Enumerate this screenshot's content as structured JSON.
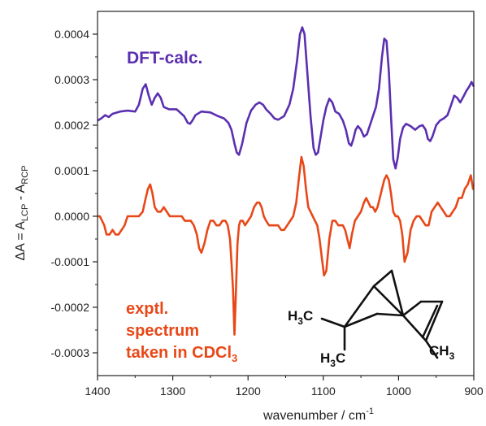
{
  "chart_data": {
    "type": "line",
    "xlabel": "wavenumber / cm",
    "xlabel_sup": "-1",
    "ylabel": "ΔA = A",
    "ylabel_sub1": "LCP",
    "ylabel_mid": " - A",
    "ylabel_sub2": "RCP",
    "xlim": [
      1400,
      900
    ],
    "x_reversed": true,
    "ylim": [
      -0.00035,
      0.00045
    ],
    "xticks": [
      1400,
      1300,
      1200,
      1100,
      1000,
      900
    ],
    "xtick_labels": [
      "1400",
      "1300",
      "1200",
      "1100",
      "1000",
      "900"
    ],
    "yticks": [
      -0.0003,
      -0.0002,
      -0.0001,
      0.0,
      0.0001,
      0.0002,
      0.0003,
      0.0004
    ],
    "ytick_labels": [
      "-0.0003",
      "-0.0002",
      "-0.0001",
      "0.0000",
      "0.0001",
      "0.0002",
      "0.0003",
      "0.0004"
    ],
    "grid": false,
    "series": [
      {
        "name": "DFT-calc.",
        "color": "#5b2fb0",
        "x": [
          1400,
          1395,
          1390,
          1385,
          1380,
          1370,
          1360,
          1350,
          1345,
          1340,
          1336,
          1332,
          1328,
          1324,
          1320,
          1316,
          1312,
          1305,
          1295,
          1285,
          1280,
          1277,
          1274,
          1270,
          1262,
          1250,
          1240,
          1232,
          1226,
          1222,
          1218,
          1215,
          1212,
          1208,
          1202,
          1196,
          1190,
          1185,
          1180,
          1176,
          1170,
          1165,
          1160,
          1152,
          1145,
          1140,
          1135,
          1131,
          1128,
          1125,
          1121,
          1117,
          1113,
          1110,
          1107,
          1104,
          1100,
          1096,
          1092,
          1088,
          1084,
          1079,
          1074,
          1070,
          1066,
          1063,
          1060,
          1057,
          1054,
          1050,
          1046,
          1042,
          1038,
          1034,
          1030,
          1026,
          1022,
          1019,
          1016,
          1013,
          1010,
          1007,
          1004,
          1001,
          998,
          994,
          990,
          984,
          978,
          972,
          968,
          964,
          961,
          958,
          955,
          950,
          945,
          940,
          935,
          930,
          926,
          922,
          918,
          914,
          910,
          906,
          903,
          900
        ],
        "y": [
          0.00021,
          0.000215,
          0.000222,
          0.000218,
          0.000225,
          0.00023,
          0.000232,
          0.00023,
          0.000245,
          0.00028,
          0.00029,
          0.000265,
          0.000245,
          0.00026,
          0.00027,
          0.00026,
          0.00024,
          0.000235,
          0.000235,
          0.00022,
          0.000205,
          0.000203,
          0.00021,
          0.000222,
          0.00023,
          0.000228,
          0.00022,
          0.000215,
          0.000205,
          0.00019,
          0.00016,
          0.00014,
          0.000135,
          0.000158,
          0.000205,
          0.000232,
          0.000245,
          0.00025,
          0.000245,
          0.000235,
          0.000225,
          0.000215,
          0.000212,
          0.00022,
          0.000245,
          0.00028,
          0.00034,
          0.0004,
          0.000415,
          0.0004,
          0.00031,
          0.00022,
          0.00015,
          0.000135,
          0.00014,
          0.00017,
          0.00021,
          0.00024,
          0.000258,
          0.00025,
          0.00023,
          0.000225,
          0.00021,
          0.00019,
          0.00016,
          0.000155,
          0.00017,
          0.00019,
          0.000198,
          0.00019,
          0.000175,
          0.00018,
          0.0002,
          0.00022,
          0.00024,
          0.00028,
          0.00035,
          0.00039,
          0.000385,
          0.00032,
          0.00022,
          0.000125,
          0.000105,
          0.00013,
          0.00017,
          0.000195,
          0.000203,
          0.000198,
          0.00019,
          0.000198,
          0.0002,
          0.00019,
          0.00017,
          0.000165,
          0.000175,
          0.0002,
          0.00021,
          0.000215,
          0.000222,
          0.000245,
          0.000265,
          0.00026,
          0.00025,
          0.000262,
          0.000275,
          0.000285,
          0.000295,
          0.000285
        ]
      },
      {
        "name": "exptl. spectrum taken in CDCl",
        "name_sub": "3",
        "color": "#e84818",
        "x": [
          1400,
          1397,
          1394,
          1391,
          1388,
          1384,
          1380,
          1376,
          1372,
          1368,
          1364,
          1360,
          1355,
          1350,
          1345,
          1340,
          1336,
          1333,
          1330,
          1327,
          1324,
          1320,
          1316,
          1312,
          1308,
          1304,
          1300,
          1296,
          1292,
          1288,
          1284,
          1280,
          1276,
          1272,
          1268,
          1265,
          1262,
          1258,
          1254,
          1250,
          1246,
          1242,
          1238,
          1234,
          1230,
          1227,
          1224,
          1222,
          1220,
          1218,
          1216,
          1214,
          1212,
          1210,
          1207,
          1204,
          1200,
          1196,
          1192,
          1188,
          1185,
          1182,
          1179,
          1176,
          1172,
          1168,
          1164,
          1160,
          1156,
          1152,
          1148,
          1144,
          1140,
          1136,
          1132,
          1129,
          1126,
          1123,
          1120,
          1117,
          1114,
          1111,
          1108,
          1105,
          1102,
          1099,
          1096,
          1092,
          1088,
          1084,
          1080,
          1077,
          1074,
          1071,
          1068,
          1065,
          1062,
          1058,
          1054,
          1050,
          1046,
          1043,
          1040,
          1037,
          1034,
          1031,
          1028,
          1025,
          1022,
          1019,
          1016,
          1013,
          1010,
          1007,
          1004,
          1001,
          998,
          995,
          992,
          988,
          984,
          980,
          976,
          972,
          968,
          964,
          960,
          956,
          952,
          948,
          944,
          940,
          936,
          932,
          928,
          924,
          920,
          916,
          912,
          908,
          904,
          901,
          900
        ],
        "y": [
          0.0,
          0.0,
          -1e-05,
          -2e-05,
          -4e-05,
          -4e-05,
          -3e-05,
          -4e-05,
          -4e-05,
          -3e-05,
          -2e-05,
          0.0,
          0.0,
          0.0,
          0.0,
          1e-05,
          4e-05,
          6e-05,
          7e-05,
          5e-05,
          2e-05,
          1e-05,
          1e-05,
          2e-05,
          1e-05,
          0.0,
          0.0,
          0.0,
          0.0,
          0.0,
          -1e-05,
          -1e-05,
          -1e-05,
          -2e-05,
          -4e-05,
          -7e-05,
          -8e-05,
          -6e-05,
          -3e-05,
          -1e-05,
          -1e-05,
          -2e-05,
          -2e-05,
          -1e-05,
          -1e-05,
          -2e-05,
          -5e-05,
          -0.0001,
          -0.00016,
          -0.00026,
          -0.00016,
          -6e-05,
          -2e-05,
          -1e-05,
          -1e-05,
          -2e-05,
          -1e-05,
          0.0,
          2e-05,
          3e-05,
          3e-05,
          2e-05,
          0.0,
          -1e-05,
          -2e-05,
          -2e-05,
          -2e-05,
          -2e-05,
          -3e-05,
          -3e-05,
          -2e-05,
          -1e-05,
          0.0,
          3e-05,
          9e-05,
          0.00013,
          0.00011,
          6e-05,
          2e-05,
          1e-05,
          0.0,
          -1e-05,
          -2e-05,
          -5e-05,
          -9e-05,
          -0.00013,
          -0.00012,
          -5e-05,
          -1e-05,
          -1e-05,
          -2e-05,
          -2e-05,
          -2e-05,
          -3e-05,
          -5e-05,
          -7e-05,
          -4e-05,
          -1e-05,
          0.0,
          1e-05,
          3e-05,
          4e-05,
          3e-05,
          2e-05,
          2e-05,
          1e-05,
          2e-05,
          4e-05,
          6e-05,
          8e-05,
          9e-05,
          8e-05,
          5e-05,
          1e-05,
          0.0,
          0.0,
          -1e-05,
          -4e-05,
          -0.0001,
          -8e-05,
          -3e-05,
          -1e-05,
          0.0,
          0.0,
          -1e-05,
          -2e-05,
          -2e-05,
          1e-05,
          2e-05,
          3e-05,
          2e-05,
          1e-05,
          0.0,
          0.0,
          1e-05,
          2e-05,
          4e-05,
          4e-05,
          6e-05,
          7e-05,
          9e-05,
          6e-05,
          6e-05
        ]
      }
    ],
    "legend": {
      "dft_label": "DFT-calc.",
      "exp_label_line1": "exptl.",
      "exp_label_line2": "spectrum",
      "exp_label_line3": "taken in CDCl",
      "exp_label_line3_sub": "3"
    },
    "molecule": {
      "label_h3c_upper": "H",
      "label_h3c_upper_sub": "3",
      "label_h3c_upper_end": "C",
      "label_h3c_lower": "H",
      "label_h3c_lower_sub": "3",
      "label_h3c_lower_end": "C",
      "label_ch3": "CH",
      "label_ch3_sub": "3"
    }
  }
}
